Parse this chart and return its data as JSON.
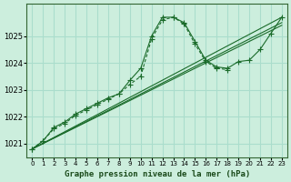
{
  "title": "Graphe pression niveau de la mer (hPa)",
  "bg_color": "#cceedd",
  "grid_color": "#aaddcc",
  "line_color": "#1a6b2a",
  "xlim": [
    -0.5,
    23.5
  ],
  "ylim": [
    1020.5,
    1026.2
  ],
  "xticks": [
    0,
    1,
    2,
    3,
    4,
    5,
    6,
    7,
    8,
    9,
    10,
    11,
    12,
    13,
    14,
    15,
    16,
    17,
    18,
    19,
    20,
    21,
    22,
    23
  ],
  "yticks": [
    1021,
    1022,
    1023,
    1024,
    1025
  ],
  "series": [
    {
      "x": [
        0,
        1,
        2,
        3,
        4,
        5,
        6,
        7,
        8,
        9,
        10,
        11,
        12,
        13,
        14,
        15,
        16,
        17,
        18,
        19,
        20,
        21,
        22,
        23
      ],
      "y": [
        1020.8,
        1021.1,
        1021.6,
        1021.8,
        1022.1,
        1022.3,
        1022.5,
        1022.7,
        1022.9,
        1023.1,
        1023.5,
        1025.0,
        1025.7,
        1025.7,
        1025.5,
        1024.8,
        1024.1,
        1023.9,
        1023.8,
        1024.0,
        1024.1,
        1024.5,
        1025.1,
        1025.7
      ],
      "marker": true
    },
    {
      "x": [
        0,
        1,
        2,
        3,
        4,
        5,
        6,
        7,
        8,
        9,
        10,
        11,
        12,
        13,
        14,
        15,
        16,
        17,
        18,
        19,
        20,
        21,
        22,
        23
      ],
      "y": [
        1020.8,
        1021.1,
        1021.6,
        1021.8,
        1022.1,
        1022.3,
        1022.5,
        1022.7,
        1022.9,
        1023.1,
        1023.5,
        1025.0,
        1025.7,
        1025.7,
        1025.5,
        1024.1,
        1023.8,
        1023.8,
        1023.8,
        1023.9,
        1024.0,
        1024.4,
        1024.8,
        1025.7
      ],
      "marker": false
    },
    {
      "x": [
        0,
        23
      ],
      "y": [
        1020.8,
        1025.7
      ],
      "marker": false
    },
    {
      "x": [
        0,
        23
      ],
      "y": [
        1020.8,
        1025.7
      ],
      "marker": false
    },
    {
      "x": [
        0,
        23
      ],
      "y": [
        1020.8,
        1025.4
      ],
      "marker": false
    }
  ]
}
